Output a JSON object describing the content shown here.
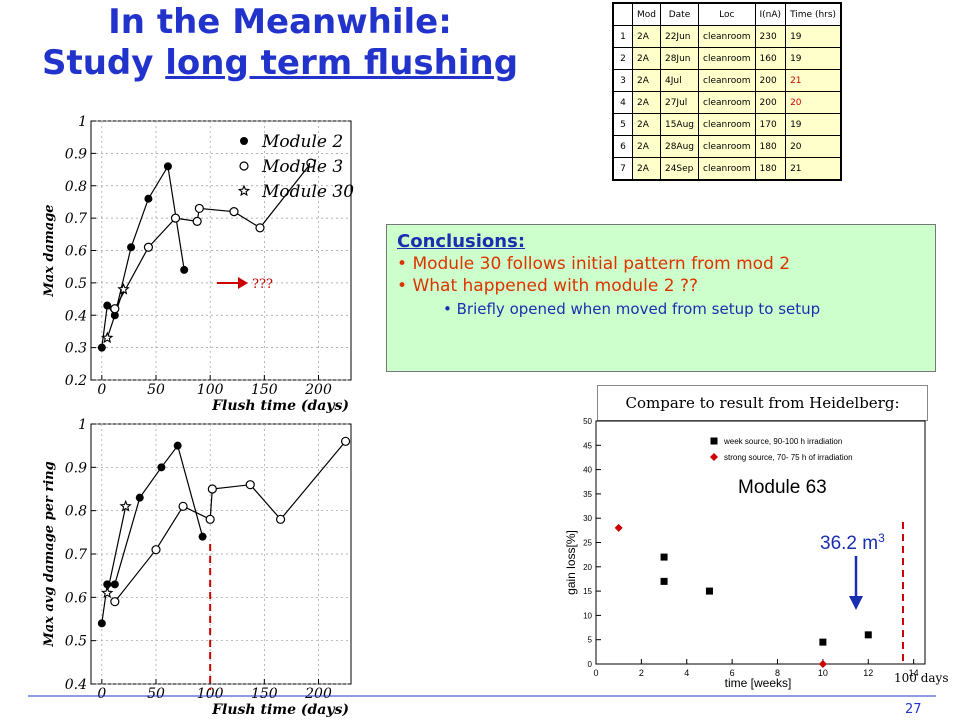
{
  "slide": {
    "title_line1": "In the Meanwhile:",
    "title_line2_prefix": "Study ",
    "title_line2_underlined": "long term flushing",
    "page_number": "27"
  },
  "table": {
    "headers": [
      "Mod",
      "Date",
      "Loc",
      "I(nA)",
      "Time (hrs)"
    ],
    "rows": [
      {
        "n": "1",
        "mod": "2A",
        "date": "22Jun",
        "loc": "cleanroom",
        "i": "230",
        "time": "19",
        "time_color": "#000000"
      },
      {
        "n": "2",
        "mod": "2A",
        "date": "28Jun",
        "loc": "cleanroom",
        "i": "160",
        "time": "19",
        "time_color": "#000000"
      },
      {
        "n": "3",
        "mod": "2A",
        "date": "4Jul",
        "loc": "cleanroom",
        "i": "200",
        "time": "21",
        "time_color": "#cc0000"
      },
      {
        "n": "4",
        "mod": "2A",
        "date": "27Jul",
        "loc": "cleanroom",
        "i": "200",
        "time": "20",
        "time_color": "#cc0000"
      },
      {
        "n": "5",
        "mod": "2A",
        "date": "15Aug",
        "loc": "cleanroom",
        "i": "170",
        "time": "19",
        "time_color": "#000000"
      },
      {
        "n": "6",
        "mod": "2A",
        "date": "28Aug",
        "loc": "cleanroom",
        "i": "180",
        "time": "20",
        "time_color": "#000000"
      },
      {
        "n": "7",
        "mod": "2A",
        "date": "24Sep",
        "loc": "cleanroom",
        "i": "180",
        "time": "21",
        "time_color": "#000000"
      }
    ]
  },
  "conclusions": {
    "heading": "Conclusions:",
    "bullet1": "Module 30 follows initial pattern from mod 2",
    "bullet2": "What happened with module 2 ??",
    "sub_bullet": "Briefly opened when moved from setup to setup"
  },
  "annotations": {
    "question": "???",
    "compare": "Compare to result from Heidelberg:",
    "module63": "Module 63",
    "dose_value": "36.2 m",
    "dose_sup": "3",
    "days_label": "100 days"
  },
  "colors": {
    "title": "#2233cc",
    "red": "#cc0000",
    "blue": "#1a2fb0",
    "box_green": "#ccffcc",
    "cell_yellow": "#ffffcc"
  },
  "chart_data": [
    {
      "type": "line",
      "xlabel": "Flush time (days)",
      "ylabel": "Max damage",
      "xlim": [
        -10,
        230
      ],
      "ylim": [
        0.2,
        1.0
      ],
      "xticks": [
        0,
        50,
        100,
        150,
        200
      ],
      "yticks": [
        0.2,
        0.3,
        0.4,
        0.5,
        0.6,
        0.7,
        0.8,
        0.9,
        1.0
      ],
      "yticklabels": [
        "0.2",
        "0.3",
        "0.4",
        "0.5",
        "0.6",
        "0.7",
        "0.8",
        "0.9",
        "1"
      ],
      "series": [
        {
          "name": "Module 2",
          "marker": "filled-circle",
          "x": [
            0,
            5,
            12,
            27,
            43,
            61,
            76
          ],
          "y": [
            0.3,
            0.43,
            0.4,
            0.61,
            0.76,
            0.86,
            0.54
          ]
        },
        {
          "name": "Module 3",
          "marker": "open-circle",
          "x": [
            12,
            43,
            68,
            88,
            90,
            122,
            146,
            193
          ],
          "y": [
            0.42,
            0.61,
            0.7,
            0.69,
            0.73,
            0.72,
            0.67,
            0.87
          ]
        },
        {
          "name": "Module 30",
          "marker": "star",
          "x": [
            5,
            20
          ],
          "y": [
            0.33,
            0.48
          ]
        }
      ]
    },
    {
      "type": "line",
      "xlabel": "Flush time (days)",
      "ylabel": "Max avg damage per ring",
      "xlim": [
        -10,
        230
      ],
      "ylim": [
        0.4,
        1.0
      ],
      "xticks": [
        0,
        50,
        100,
        150,
        200
      ],
      "yticks": [
        0.4,
        0.5,
        0.6,
        0.7,
        0.8,
        0.9,
        1.0
      ],
      "yticklabels": [
        "0.4",
        "0.5",
        "0.6",
        "0.7",
        "0.8",
        "0.9",
        "1"
      ],
      "series": [
        {
          "name": "Module 2",
          "marker": "filled-circle",
          "x": [
            0,
            5,
            12,
            35,
            55,
            70,
            93
          ],
          "y": [
            0.54,
            0.63,
            0.63,
            0.83,
            0.9,
            0.95,
            0.74
          ]
        },
        {
          "name": "Module 3",
          "marker": "open-circle",
          "x": [
            12,
            50,
            75,
            100,
            102,
            137,
            165,
            225
          ],
          "y": [
            0.59,
            0.71,
            0.81,
            0.78,
            0.85,
            0.86,
            0.78,
            0.96
          ]
        },
        {
          "name": "Module 30",
          "marker": "star",
          "x": [
            5,
            22
          ],
          "y": [
            0.61,
            0.81
          ]
        }
      ]
    },
    {
      "type": "scatter",
      "xlabel": "time [weeks]",
      "ylabel": "gain loss[%]",
      "xlim": [
        0,
        14.5
      ],
      "ylim": [
        0,
        50
      ],
      "xticks": [
        0,
        2,
        4,
        6,
        8,
        10,
        12,
        14
      ],
      "yticks": [
        0,
        5,
        10,
        15,
        20,
        25,
        30,
        35,
        40,
        45,
        50
      ],
      "series": [
        {
          "name": "week source, 90-100 h irradiation",
          "marker": "square",
          "color": "#000000",
          "x": [
            3,
            3,
            5,
            10,
            12
          ],
          "y": [
            22,
            17,
            15,
            4.5,
            6
          ]
        },
        {
          "name": "strong source, 70- 75 h of irradiation",
          "marker": "diamond",
          "color": "#cc0000",
          "x": [
            1,
            10
          ],
          "y": [
            28,
            0
          ]
        }
      ]
    }
  ]
}
